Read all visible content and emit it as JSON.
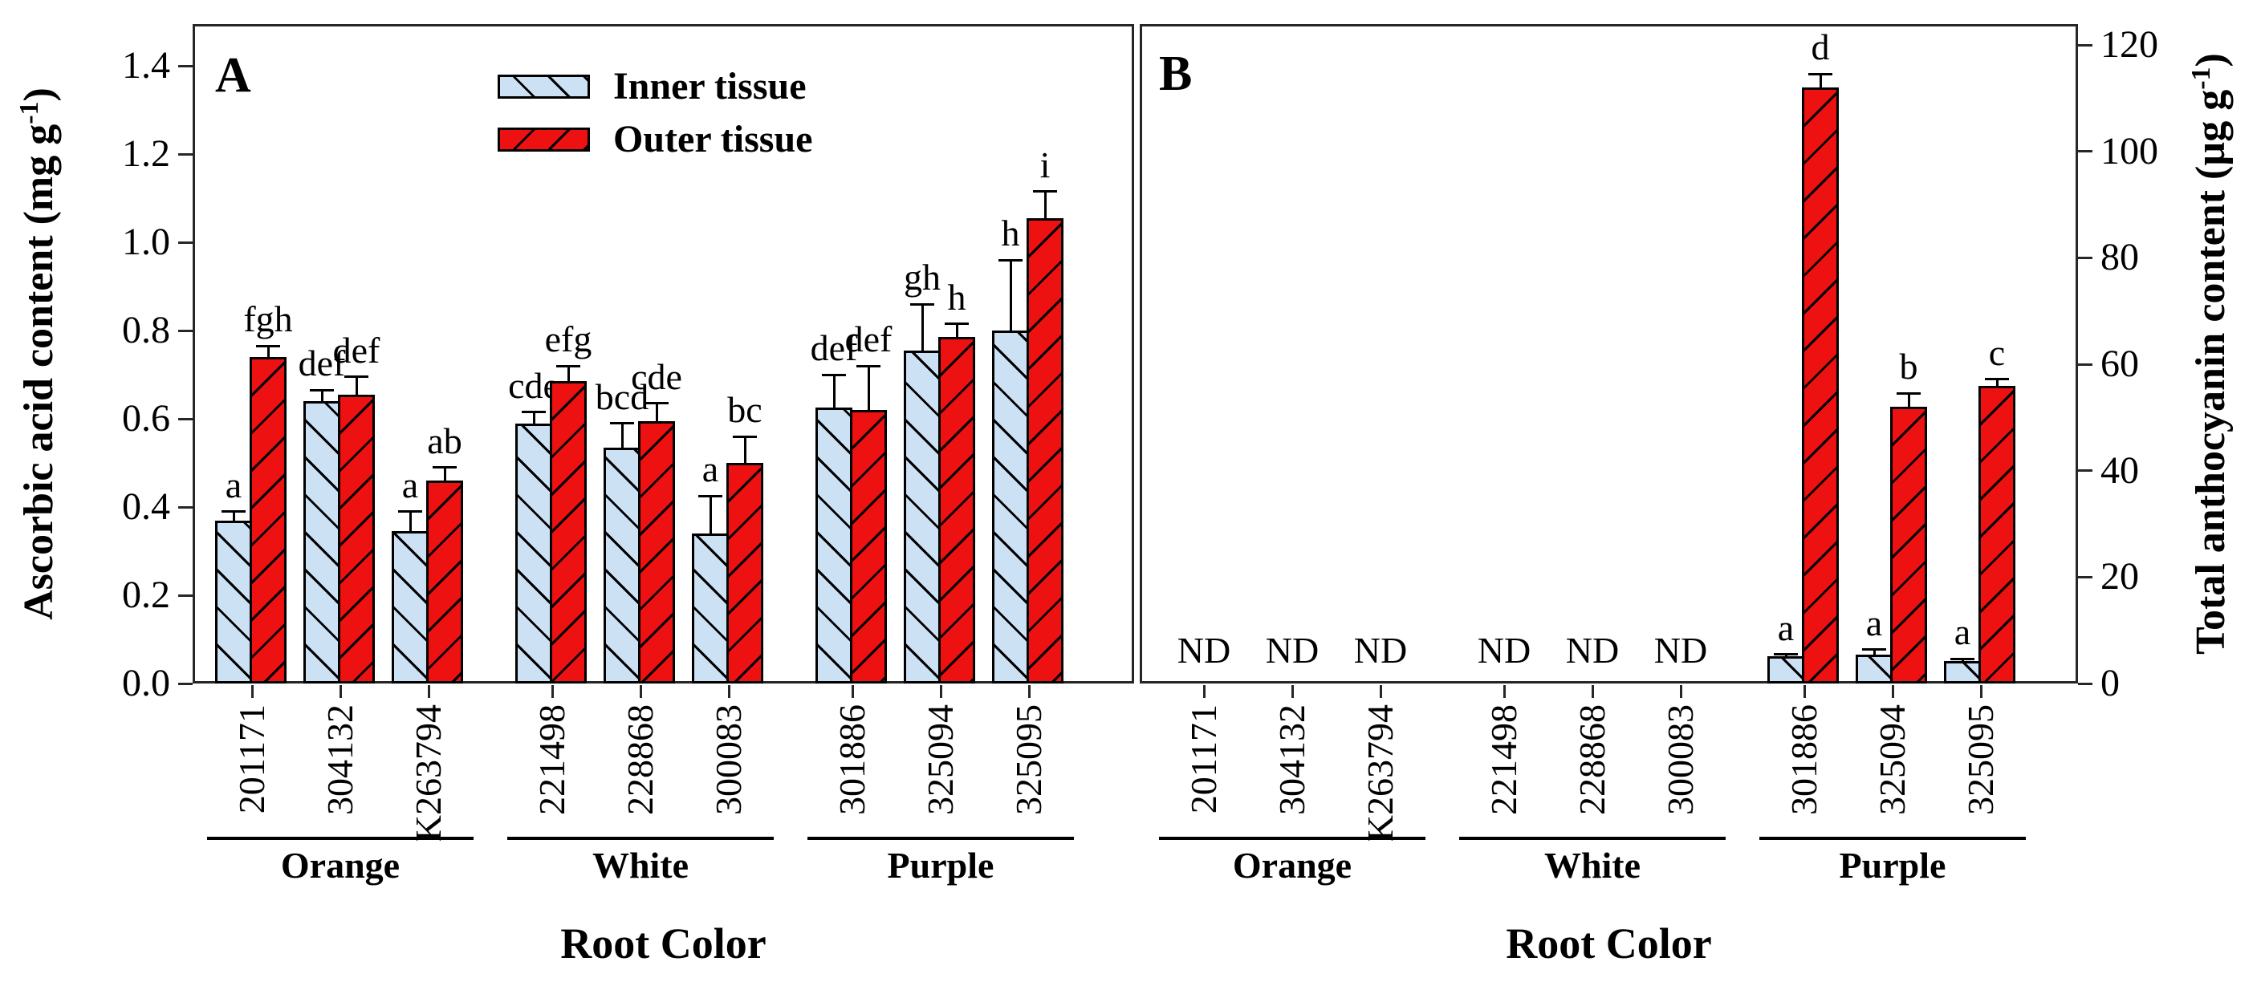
{
  "figure": {
    "background": "#ffffff",
    "bar_outline_color": "#000000",
    "inner_tissue_color": "#cde1f5",
    "outer_tissue_color": "#ee1111",
    "legend": {
      "items": [
        {
          "label": "Inner tissue",
          "hatch": "\\"
        },
        {
          "label": "Outer tissue",
          "hatch": "/"
        }
      ]
    }
  },
  "chart_data": [
    {
      "panel": "A",
      "type": "bar",
      "ylabel": "Ascorbic acid content (mg g-1)",
      "ylabel_pre": "Ascorbic acid content (mg g",
      "ylabel_sup": "-1",
      "ylabel_post": ")",
      "xlabel": "Root Color",
      "ylim": [
        0,
        1.5
      ],
      "yticks": [
        "0.0",
        "0.2",
        "0.4",
        "0.6",
        "0.8",
        "1.0",
        "1.2",
        "1.4"
      ],
      "grid": false,
      "legend_position": "top-center",
      "categories": [
        "201171",
        "304132",
        "K263794",
        "221498",
        "228868",
        "300083",
        "301886",
        "325094",
        "325095"
      ],
      "groups": [
        {
          "label": "Orange",
          "from": 0,
          "to": 2
        },
        {
          "label": "White",
          "from": 3,
          "to": 5
        },
        {
          "label": "Purple",
          "from": 6,
          "to": 8
        }
      ],
      "series": [
        {
          "name": "Inner tissue",
          "values": [
            0.37,
            0.64,
            0.345,
            0.59,
            0.535,
            0.34,
            0.625,
            0.755,
            0.8
          ],
          "errors": [
            0.02,
            0.025,
            0.045,
            0.025,
            0.055,
            0.085,
            0.075,
            0.105,
            0.16
          ],
          "letters": [
            "a",
            "def",
            "a",
            "cde",
            "bcd",
            "a",
            "def",
            "gh",
            "h"
          ]
        },
        {
          "name": "Outer tissue",
          "values": [
            0.74,
            0.655,
            0.46,
            0.685,
            0.595,
            0.5,
            0.62,
            0.785,
            1.055
          ],
          "errors": [
            0.025,
            0.04,
            0.03,
            0.035,
            0.04,
            0.06,
            0.1,
            0.03,
            0.06
          ],
          "letters": [
            "fgh",
            "def",
            "ab",
            "efg",
            "cde",
            "bc",
            "def",
            "h",
            "i"
          ]
        }
      ]
    },
    {
      "panel": "B",
      "type": "bar",
      "ylabel": "Total anthocyanin content (µg g-1)",
      "ylabel_pre": "Total anthocyanin content (µg g",
      "ylabel_sup": "-1",
      "ylabel_post": ")",
      "xlabel": "Root Color",
      "ylim": [
        0,
        124
      ],
      "yticks": [
        "0",
        "20",
        "40",
        "60",
        "80",
        "100",
        "120"
      ],
      "grid": false,
      "nd_label": "ND",
      "nd_indices": [
        0,
        1,
        2,
        3,
        4,
        5
      ],
      "categories": [
        "201171",
        "304132",
        "K263794",
        "221498",
        "228868",
        "300083",
        "301886",
        "325094",
        "325095"
      ],
      "groups": [
        {
          "label": "Orange",
          "from": 0,
          "to": 2
        },
        {
          "label": "White",
          "from": 3,
          "to": 5
        },
        {
          "label": "Purple",
          "from": 6,
          "to": 8
        }
      ],
      "series": [
        {
          "name": "Inner tissue",
          "values": [
            null,
            null,
            null,
            null,
            null,
            null,
            5.1,
            5.5,
            4.2
          ],
          "errors": [
            null,
            null,
            null,
            null,
            null,
            null,
            0.4,
            0.9,
            0.4
          ],
          "letters": [
            null,
            null,
            null,
            null,
            null,
            null,
            "a",
            "a",
            "a"
          ]
        },
        {
          "name": "Outer tissue",
          "values": [
            null,
            null,
            null,
            null,
            null,
            null,
            112,
            52,
            56
          ],
          "errors": [
            null,
            null,
            null,
            null,
            null,
            null,
            2.5,
            2.5,
            1.2
          ],
          "letters": [
            null,
            null,
            null,
            null,
            null,
            null,
            "d",
            "b",
            "c"
          ]
        }
      ]
    }
  ]
}
